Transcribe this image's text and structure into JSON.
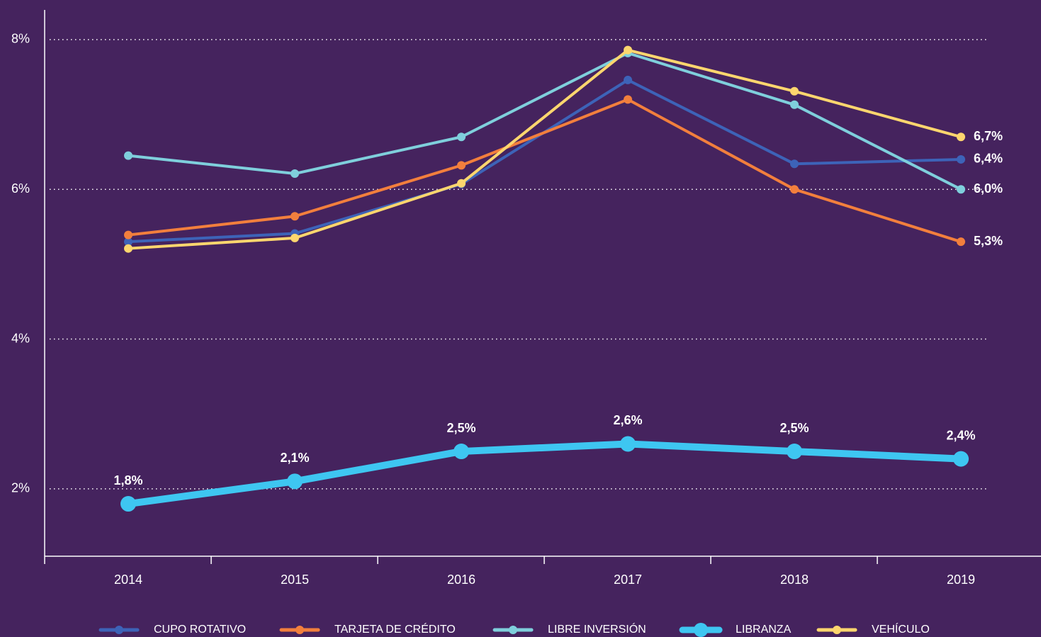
{
  "chart_data": {
    "type": "line",
    "categories": [
      "2014",
      "2015",
      "2016",
      "2017",
      "2018",
      "2019"
    ],
    "ylim": [
      1.1,
      8.4
    ],
    "yticks": [
      {
        "value": 2,
        "label": "2%"
      },
      {
        "value": 4,
        "label": "4%"
      },
      {
        "value": 6,
        "label": "6%"
      },
      {
        "value": 8,
        "label": "8%"
      }
    ],
    "grid": true,
    "legend": "bottom",
    "series": [
      {
        "name": "CUPO ROTATIVO",
        "color": "#3d63b8",
        "linewidth": 4,
        "values": [
          5.3,
          5.41,
          6.07,
          7.46,
          6.34,
          6.4
        ],
        "value_labels": [
          null,
          null,
          null,
          null,
          null,
          "6,4%"
        ]
      },
      {
        "name": "TARJETA DE CRÉDITO",
        "color": "#f27f3d",
        "linewidth": 4,
        "values": [
          5.39,
          5.64,
          6.32,
          7.2,
          6.0,
          5.3
        ],
        "value_labels": [
          null,
          null,
          null,
          null,
          null,
          "5,3%"
        ]
      },
      {
        "name": "LIBRE INVERSIÓN",
        "color": "#7fcfdc",
        "linewidth": 4,
        "values": [
          6.45,
          6.21,
          6.7,
          7.82,
          7.13,
          6.0
        ],
        "value_labels": [
          null,
          null,
          null,
          null,
          null,
          "6,0%"
        ]
      },
      {
        "name": "LIBRANZA",
        "color": "#3ec6f1",
        "linewidth": 10,
        "values": [
          1.8,
          2.1,
          2.5,
          2.6,
          2.5,
          2.4
        ],
        "value_labels": [
          "1,8%",
          "2,1%",
          "2,5%",
          "2,6%",
          "2,5%",
          "2,4%"
        ]
      },
      {
        "name": "VEHÍCULO",
        "color": "#fdd66e",
        "linewidth": 4,
        "values": [
          5.21,
          5.35,
          6.08,
          7.86,
          7.31,
          6.7
        ],
        "value_labels": [
          null,
          null,
          null,
          null,
          null,
          "6,7%"
        ]
      }
    ]
  }
}
